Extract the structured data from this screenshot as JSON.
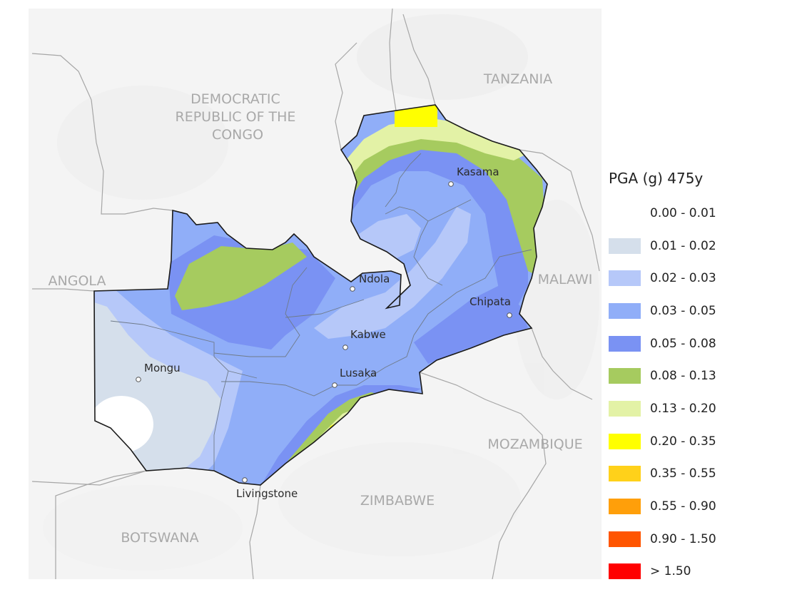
{
  "legend": {
    "title": "PGA (g) 475y",
    "items": [
      {
        "label": "0.00 - 0.01",
        "color": "#ffffff"
      },
      {
        "label": "0.01 - 0.02",
        "color": "#d5dfeb"
      },
      {
        "label": "0.02 - 0.03",
        "color": "#b6c8f9"
      },
      {
        "label": "0.03 - 0.05",
        "color": "#90aef8"
      },
      {
        "label": "0.05 - 0.08",
        "color": "#7a92f3"
      },
      {
        "label": "0.08 - 0.13",
        "color": "#a6cb5f"
      },
      {
        "label": "0.13 - 0.20",
        "color": "#e3f2a6"
      },
      {
        "label": "0.20 - 0.35",
        "color": "#ffff00"
      },
      {
        "label": "0.35 - 0.55",
        "color": "#ffd11a"
      },
      {
        "label": "0.55 - 0.90",
        "color": "#ff9f0a"
      },
      {
        "label": "0.90 - 1.50",
        "color": "#ff5500"
      },
      {
        "label": "> 1.50",
        "color": "#ff0000"
      }
    ]
  },
  "countries": {
    "drc": [
      "DEMOCRATIC",
      "REPUBLIC OF THE",
      "CONGO"
    ],
    "tanzania": "TANZANIA",
    "angola": "ANGOLA",
    "malawi": "MALAWI",
    "mozambique": "MOZAMBIQUE",
    "zimbabwe": "ZIMBABWE",
    "botswana": "BOTSWANA"
  },
  "cities": {
    "kasama": "Kasama",
    "ndola": "Ndola",
    "chipata": "Chipata",
    "kabwe": "Kabwe",
    "mongu": "Mongu",
    "lusaka": "Lusaka",
    "livingstone": "Livingstone"
  }
}
